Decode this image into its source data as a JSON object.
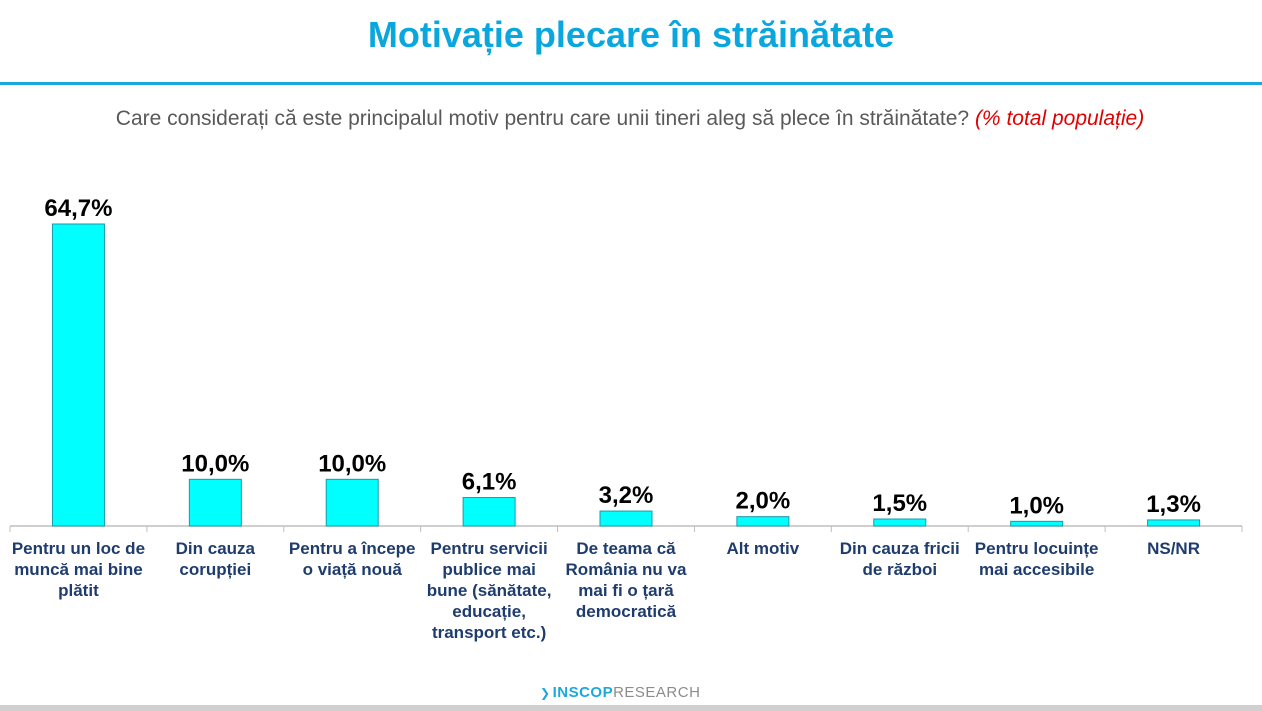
{
  "header": {
    "title": "Motivație plecare în străinătate",
    "question": "Care considerați că este principalul motiv pentru care unii tineri aleg să plece în străinătate?",
    "note": "(% total populație)"
  },
  "footer": {
    "brand": "INSCOP",
    "brand_sub": "RESEARCH"
  },
  "colors": {
    "title": "#0aa7df",
    "bar": "#00ffff",
    "category_text": "#1f3c6e",
    "note": "#e00000"
  },
  "chart_data": {
    "type": "bar",
    "title": "Motivație plecare în străinătate",
    "xlabel": "",
    "ylabel": "",
    "ylim": [
      0,
      70
    ],
    "grid": false,
    "categories": [
      "Pentru un loc de muncă mai bine plătit",
      "Din cauza corupției",
      "Pentru a începe o viață nouă",
      "Pentru servicii publice mai bune (sănătate, educație, transport etc.)",
      "De teama că România nu va mai fi o țară democratică",
      "Alt motiv",
      "Din cauza fricii de război",
      "Pentru locuințe mai accesibile",
      "NS/NR"
    ],
    "values": [
      64.7,
      10.0,
      10.0,
      6.1,
      3.2,
      2.0,
      1.5,
      1.0,
      1.3
    ],
    "value_labels": [
      "64,7%",
      "10,0%",
      "10,0%",
      "6,1%",
      "3,2%",
      "2,0%",
      "1,5%",
      "1,0%",
      "1,3%"
    ]
  }
}
